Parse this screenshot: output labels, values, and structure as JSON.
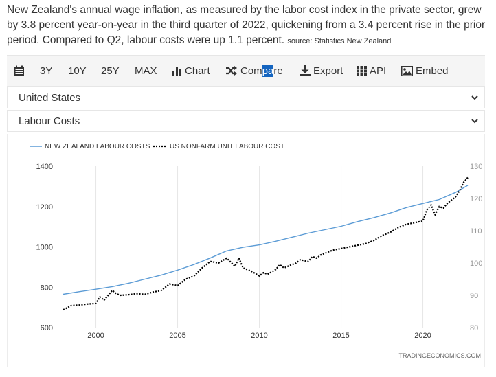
{
  "description": {
    "text": "New Zealand's annual wage inflation, as measured by the labor cost index in the private sector, grew by 3.8 percent year-on-year in the third quarter of 2022, quickening from a 3.4 percent rise in the prior period. Compared to Q2, labour costs were up 1.1 percent.",
    "source": "source: Statistics New Zealand"
  },
  "toolbar": {
    "range_3y": "3Y",
    "range_10y": "10Y",
    "range_25y": "25Y",
    "range_max": "MAX",
    "chart": "Chart",
    "compare_a": "Com",
    "compare_b": "pa",
    "compare_c": "re",
    "export": "Export",
    "api": "API",
    "embed": "Embed"
  },
  "selectors": {
    "country": "United States",
    "indicator": "Labour Costs"
  },
  "credit": "TRADINGECONOMICS.COM",
  "colors": {
    "nz_line": "#5b9bd5",
    "us_line": "#000000",
    "grid": "#e6e6e6"
  },
  "chart_data": {
    "type": "line",
    "title": "",
    "legend": [
      "NEW ZEALAND LABOUR COSTS",
      "US NONFARM UNIT LABOUR COST"
    ],
    "legend_position": "top-left",
    "xlim": [
      1997.75,
      2022.75
    ],
    "x_ticks": [
      2000,
      2005,
      2010,
      2015,
      2020
    ],
    "y_left": {
      "ylim": [
        600,
        1400
      ],
      "ticks": [
        600,
        800,
        1000,
        1200,
        1400
      ]
    },
    "y_right": {
      "ylim": [
        80,
        130
      ],
      "ticks": [
        80,
        90,
        100,
        110,
        120,
        130
      ]
    },
    "grid": "vertical",
    "series": [
      {
        "name": "NEW ZEALAND LABOUR COSTS",
        "axis": "left",
        "style": "solid",
        "x": [
          1998,
          1999,
          2000,
          2001,
          2002,
          2003,
          2004,
          2005,
          2006,
          2007,
          2008,
          2009,
          2010,
          2011,
          2012,
          2013,
          2014,
          2015,
          2016,
          2017,
          2018,
          2019,
          2020,
          2021,
          2022,
          2022.75
        ],
        "values": [
          765,
          778,
          790,
          803,
          820,
          840,
          860,
          885,
          913,
          945,
          980,
          998,
          1010,
          1028,
          1048,
          1068,
          1085,
          1102,
          1125,
          1145,
          1168,
          1195,
          1215,
          1235,
          1270,
          1305
        ]
      },
      {
        "name": "US NONFARM UNIT LABOUR COST",
        "axis": "right",
        "style": "dotted",
        "x": [
          1998,
          1998.5,
          1999,
          1999.5,
          2000,
          2000.25,
          2000.5,
          2000.75,
          2001,
          2001.25,
          2001.5,
          2002,
          2002.5,
          2003,
          2003.5,
          2004,
          2004.5,
          2005,
          2005.5,
          2006,
          2006.5,
          2007,
          2007.5,
          2008,
          2008.5,
          2008.75,
          2009,
          2009.5,
          2010,
          2010.25,
          2010.5,
          2011,
          2011.25,
          2011.5,
          2011.75,
          2012,
          2012.25,
          2012.5,
          2013,
          2013.25,
          2013.5,
          2013.75,
          2014,
          2014.5,
          2015,
          2015.5,
          2016,
          2016.5,
          2017,
          2017.5,
          2018,
          2018.5,
          2019,
          2019.5,
          2020,
          2020.25,
          2020.5,
          2020.75,
          2021,
          2021.25,
          2021.5,
          2022,
          2022.25,
          2022.5,
          2022.75
        ],
        "values": [
          85.5,
          86.8,
          87.0,
          87.3,
          87.5,
          89.5,
          88.5,
          90.0,
          91.5,
          90.5,
          90.0,
          90.2,
          90.5,
          90.3,
          91.0,
          91.5,
          93.5,
          93.0,
          95.0,
          96.0,
          98.5,
          100.5,
          100.0,
          101.5,
          99.0,
          101.5,
          98.5,
          97.5,
          96.0,
          97.0,
          96.5,
          98.0,
          99.5,
          98.5,
          99.0,
          99.5,
          100.0,
          101.0,
          100.5,
          102.0,
          101.5,
          102.5,
          103.0,
          104.0,
          104.5,
          105.0,
          105.5,
          106.0,
          107.0,
          108.5,
          109.5,
          111.0,
          112.0,
          112.5,
          113.0,
          116.5,
          118.0,
          115.0,
          117.5,
          117.0,
          118.5,
          120.5,
          122.5,
          125.0,
          126.5
        ]
      }
    ]
  }
}
